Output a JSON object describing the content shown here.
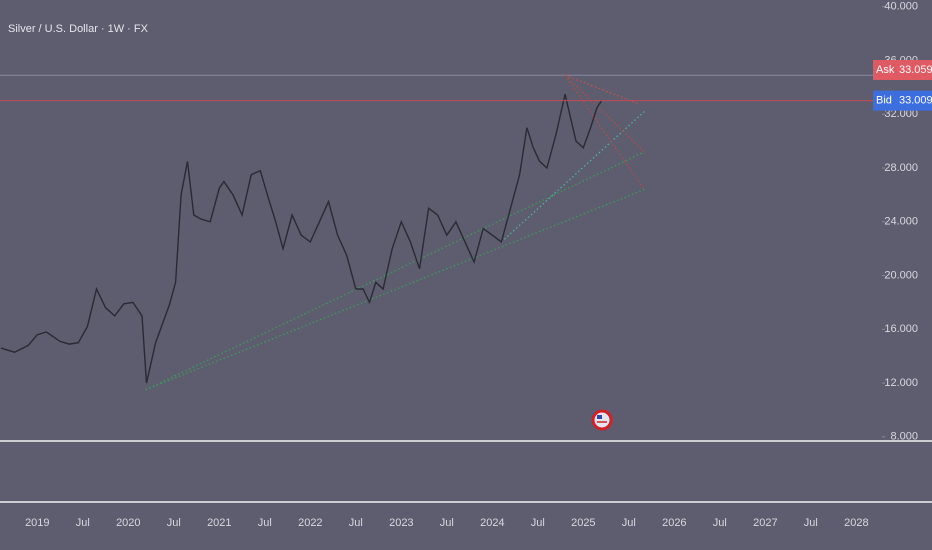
{
  "chart_data": {
    "type": "line",
    "title": "Silver / U.S. Dollar · 1W · FX",
    "x": [
      2018.6,
      2018.75,
      2018.9,
      2019.0,
      2019.1,
      2019.25,
      2019.35,
      2019.45,
      2019.55,
      2019.65,
      2019.75,
      2019.85,
      2019.95,
      2020.05,
      2020.15,
      2020.2,
      2020.3,
      2020.38,
      2020.45,
      2020.52,
      2020.58,
      2020.65,
      2020.72,
      2020.8,
      2020.9,
      2021.0,
      2021.05,
      2021.15,
      2021.25,
      2021.35,
      2021.45,
      2021.55,
      2021.62,
      2021.7,
      2021.8,
      2021.9,
      2022.0,
      2022.1,
      2022.2,
      2022.3,
      2022.4,
      2022.5,
      2022.58,
      2022.65,
      2022.72,
      2022.8,
      2022.9,
      2023.0,
      2023.1,
      2023.2,
      2023.3,
      2023.4,
      2023.5,
      2023.6,
      2023.7,
      2023.8,
      2023.9,
      2024.0,
      2024.1,
      2024.2,
      2024.3,
      2024.38,
      2024.45,
      2024.52,
      2024.6,
      2024.7,
      2024.8,
      2024.85,
      2024.92,
      2025.0,
      2025.08,
      2025.15,
      2025.2
    ],
    "series": [
      {
        "color": "#2a2a34",
        "values": [
          14.6,
          14.3,
          14.8,
          15.6,
          15.8,
          15.1,
          14.9,
          15.0,
          16.2,
          19.0,
          17.6,
          17.0,
          17.9,
          18.0,
          17.0,
          12.0,
          15.0,
          16.5,
          17.8,
          19.5,
          26.0,
          28.5,
          24.5,
          24.2,
          24.0,
          26.5,
          27.0,
          26.0,
          24.5,
          27.5,
          27.8,
          25.5,
          24.0,
          22.0,
          24.5,
          23.0,
          22.5,
          24.0,
          25.5,
          23.0,
          21.5,
          19.0,
          19.0,
          18.0,
          19.5,
          19.0,
          22.0,
          24.0,
          22.5,
          20.5,
          25.0,
          24.5,
          23.0,
          24.0,
          22.5,
          21.0,
          23.5,
          23.0,
          22.5,
          25.0,
          27.5,
          31.0,
          29.5,
          28.5,
          28.0,
          30.5,
          33.5,
          32.0,
          30.0,
          29.5,
          31.0,
          32.5,
          33.0
        ]
      }
    ],
    "xlim": [
      2018.59,
      2028.26
    ],
    "xticks": [
      {
        "value": 2019,
        "label": "2019"
      },
      {
        "value": 2019.5,
        "label": "Jul"
      },
      {
        "value": 2020,
        "label": "2020"
      },
      {
        "value": 2020.5,
        "label": "Jul"
      },
      {
        "value": 2021,
        "label": "2021"
      },
      {
        "value": 2021.5,
        "label": "Jul"
      },
      {
        "value": 2022,
        "label": "2022"
      },
      {
        "value": 2022.5,
        "label": "Jul"
      },
      {
        "value": 2023,
        "label": "2023"
      },
      {
        "value": 2023.5,
        "label": "Jul"
      },
      {
        "value": 2024,
        "label": "2024"
      },
      {
        "value": 2024.5,
        "label": "Jul"
      },
      {
        "value": 2025,
        "label": "2025"
      },
      {
        "value": 2025.5,
        "label": "Jul"
      },
      {
        "value": 2026,
        "label": "2026"
      },
      {
        "value": 2026.5,
        "label": "Jul"
      },
      {
        "value": 2027,
        "label": "2027"
      },
      {
        "value": 2027.5,
        "label": "Jul"
      },
      {
        "value": 2028,
        "label": "2028"
      }
    ],
    "ylim": [
      3.3,
      40.5
    ],
    "yticks": [
      {
        "value": 8,
        "label": "8.000"
      },
      {
        "value": 12,
        "label": "12.000"
      },
      {
        "value": 16,
        "label": "16.000"
      },
      {
        "value": 20,
        "label": "20.000"
      },
      {
        "value": 24,
        "label": "24.000"
      },
      {
        "value": 28,
        "label": "28.000"
      },
      {
        "value": 32,
        "label": "32.000"
      },
      {
        "value": 36,
        "label": "36.000"
      },
      {
        "value": 40,
        "label": "40.000"
      }
    ],
    "quotes": [
      {
        "label": "Ask",
        "value": 33.059,
        "color": "#e05a63"
      },
      {
        "label": "Bid",
        "value": 33.009,
        "color": "#3d6ee0"
      }
    ],
    "trendlines": [
      {
        "color": "#3f9a5a",
        "points": [
          [
            2020.19,
            11.5
          ],
          [
            2025.67,
            26.4
          ]
        ]
      },
      {
        "color": "#3f9a5a",
        "points": [
          [
            2020.19,
            11.5
          ],
          [
            2025.67,
            29.2
          ]
        ]
      },
      {
        "color": "#4fb59a",
        "points": [
          [
            2024.1,
            22.5
          ],
          [
            2025.67,
            32.2
          ]
        ]
      },
      {
        "color": "#b84a4a",
        "points": [
          [
            2024.8,
            34.9
          ],
          [
            2025.67,
            26.4
          ]
        ]
      },
      {
        "color": "#b84a4a",
        "points": [
          [
            2024.8,
            34.9
          ],
          [
            2025.67,
            29.2
          ]
        ]
      },
      {
        "color": "#c95050",
        "points": [
          [
            2024.8,
            34.9
          ],
          [
            2025.6,
            32.8
          ]
        ]
      }
    ],
    "high_line": 34.9
  }
}
